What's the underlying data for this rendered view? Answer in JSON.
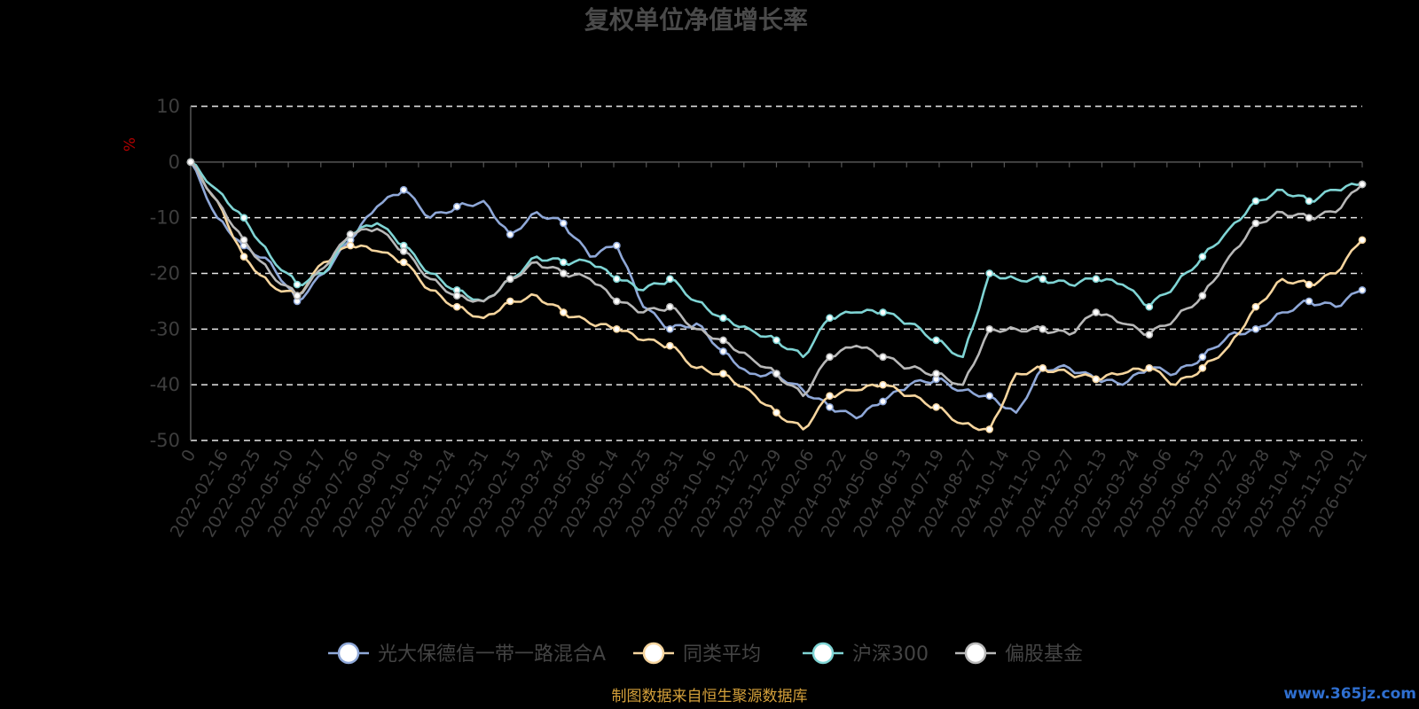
{
  "chart_data": {
    "type": "line",
    "title": "复权单位净值增长率",
    "ylabel": "%",
    "ylim": [
      -50,
      10
    ],
    "yticks": [
      10,
      0,
      -10,
      -20,
      -30,
      -40,
      -50
    ],
    "grid": true,
    "legend_position": "bottom",
    "x_ticks": [
      "0",
      "2022-02-16",
      "2022-03-25",
      "2022-05-10",
      "2022-06-17",
      "2022-07-26",
      "2022-09-01",
      "2022-10-18",
      "2022-11-24",
      "2022-12-31",
      "2023-02-15",
      "2023-03-24",
      "2023-05-08",
      "2023-06-14",
      "2023-07-25",
      "2023-08-31",
      "2023-10-16",
      "2023-11-22",
      "2023-12-29",
      "2024-02-06",
      "2024-03-22",
      "2024-05-06",
      "2024-06-13",
      "2024-07-19",
      "2024-08-27",
      "2024-10-14",
      "2024-11-20",
      "2024-12-27",
      "2025-02-13",
      "2025-03-24",
      "2025-05-06",
      "2025-06-13",
      "2025-07-22",
      "2025-08-28",
      "2025-10-14",
      "2025-11-20",
      "2026-01-21"
    ],
    "series": [
      {
        "name": "光大保德信一带一路混合A",
        "color": "#8fa8d8",
        "values": [
          0,
          -10,
          -15,
          -18,
          -25,
          -20,
          -14,
          -8,
          -5,
          -10,
          -8,
          -7,
          -13,
          -9,
          -11,
          -17,
          -15,
          -26,
          -30,
          -29,
          -34,
          -38,
          -38,
          -41,
          -44,
          -46,
          -43,
          -40,
          -39,
          -41,
          -42,
          -45,
          -37,
          -37,
          -39,
          -40,
          -37,
          -38,
          -35,
          -31,
          -30,
          -27,
          -25,
          -26,
          -23
        ]
      },
      {
        "name": "同类平均",
        "color": "#f6d59e",
        "values": [
          0,
          -7,
          -17,
          -22,
          -24,
          -18,
          -15,
          -16,
          -18,
          -23,
          -26,
          -28,
          -25,
          -24,
          -27,
          -29,
          -30,
          -32,
          -33,
          -37,
          -38,
          -41,
          -45,
          -48,
          -42,
          -41,
          -40,
          -42,
          -44,
          -47,
          -48,
          -38,
          -37,
          -38,
          -39,
          -38,
          -37,
          -40,
          -37,
          -33,
          -26,
          -21,
          -22,
          -20,
          -14
        ]
      },
      {
        "name": "沪深300",
        "color": "#7fd4d4",
        "values": [
          0,
          -5,
          -10,
          -17,
          -22,
          -20,
          -13,
          -11,
          -15,
          -20,
          -23,
          -25,
          -21,
          -17,
          -18,
          -18,
          -21,
          -23,
          -21,
          -25,
          -28,
          -30,
          -32,
          -35,
          -28,
          -27,
          -27,
          -29,
          -32,
          -35,
          -20,
          -21,
          -21,
          -22,
          -21,
          -22,
          -26,
          -22,
          -17,
          -12,
          -7,
          -5,
          -7,
          -5,
          -4
        ]
      },
      {
        "name": "偏股基金",
        "color": "#b8b8b8",
        "values": [
          0,
          -7,
          -14,
          -20,
          -24,
          -19,
          -13,
          -12,
          -16,
          -21,
          -24,
          -25,
          -21,
          -18,
          -20,
          -21,
          -25,
          -27,
          -26,
          -30,
          -32,
          -35,
          -38,
          -42,
          -35,
          -33,
          -35,
          -37,
          -38,
          -40,
          -30,
          -30,
          -30,
          -31,
          -27,
          -29,
          -31,
          -28,
          -24,
          -17,
          -11,
          -9,
          -10,
          -9,
          -4
        ]
      }
    ]
  },
  "source_note": "制图数据来自恒生聚源数据库",
  "watermark": "www.365jz.com"
}
